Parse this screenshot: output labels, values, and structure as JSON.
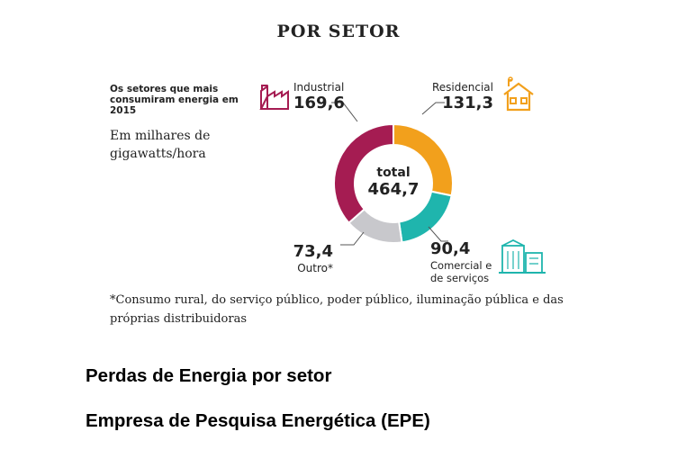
{
  "heading": "POR SETOR",
  "intro": "Os setores que mais consumiram energia em 2015",
  "units": "Em milhares de gigawatts/hora",
  "footnote": "*Consumo rural, do serviço público, poder público, iluminação pública e das próprias distribuidoras",
  "captions": {
    "title": "Perdas de Energia por setor",
    "source": "Empresa de Pesquisa Energética (EPE)"
  },
  "chart_data": {
    "type": "pie",
    "categories": [
      "Residencial",
      "Comercial e de serviços",
      "Outro*",
      "Industrial"
    ],
    "values": [
      131.3,
      90.4,
      73.4,
      169.6
    ],
    "value_labels": [
      "131,3",
      "90,4",
      "73,4",
      "169,6"
    ],
    "colors": [
      "#f2a01c",
      "#1fb5ad",
      "#c8c8cc",
      "#a51c52"
    ],
    "center_label": "total",
    "center_value": "464,7",
    "donut": true
  },
  "labels": {
    "industrial": {
      "name": "Industrial",
      "value": "169,6"
    },
    "residencial": {
      "name": "Residencial",
      "value": "131,3"
    },
    "comercial": {
      "name_line1": "Comercial e",
      "name_line2": "de serviços",
      "value": "90,4"
    },
    "outro": {
      "name": "Outro*",
      "value": "73,4"
    }
  },
  "icons": {
    "industrial": "factory-icon",
    "residencial": "house-icon",
    "comercial": "building-icon"
  }
}
